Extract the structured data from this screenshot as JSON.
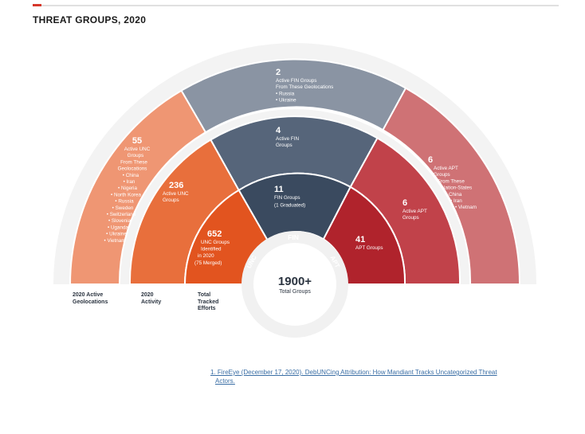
{
  "title": "THREAT GROUPS, 2020",
  "center": {
    "value": "1900+",
    "label": "Total Groups"
  },
  "inner_ring": {
    "unc": "UNC",
    "fin": "FIN",
    "apt": "APT"
  },
  "total_tracked": {
    "unc": {
      "number": "652",
      "lines": [
        "UNC Groups",
        "Identified",
        "in 2020",
        "(75 Merged)"
      ]
    },
    "fin": {
      "number": "11",
      "lines": [
        "FIN Groups",
        "(1 Graduated)"
      ]
    },
    "apt": {
      "number": "41",
      "lines": [
        "APT Groups"
      ]
    }
  },
  "activity": {
    "unc": {
      "number": "236",
      "lines": [
        "Active UNC",
        "Groups"
      ]
    },
    "fin": {
      "number": "4",
      "lines": [
        "Active FIN",
        "Groups"
      ]
    },
    "apt": {
      "number": "6",
      "lines": [
        "Active APT",
        "Groups"
      ]
    }
  },
  "geolocations": {
    "unc": {
      "number": "55",
      "lines": [
        "Active UNC",
        "Groups",
        "From These",
        "Geolocations",
        "• China",
        "• Iran",
        "• Nigeria",
        "• North Korea",
        "• Russia",
        "• Sweden",
        "• Switzerland",
        "• Slovenia",
        "• Uganda",
        "• Ukraine",
        "• Vietnam"
      ]
    },
    "fin": {
      "number": "2",
      "lines": [
        "Active FIN Groups",
        "From These Geolocations",
        "• Russia",
        "• Ukraine"
      ]
    },
    "apt": {
      "number": "6",
      "lines": [
        "Active APT",
        "Groups",
        "From These",
        "Nation-States",
        "• China",
        "• Iran",
        "• Vietnam"
      ]
    }
  },
  "column_labels": {
    "geolocations": [
      "2020 Active",
      "Geolocations"
    ],
    "activity": [
      "2020",
      "Activity"
    ],
    "total": [
      "Total",
      "Tracked",
      "Efforts"
    ]
  },
  "footnote": {
    "line1": "1. FireEye (December 17, 2020). DebUNCing Attribution: How Mandiant Tracks Uncategorized Threat",
    "line2": "Actors."
  },
  "colors": {
    "unc_outer": "#ef9673",
    "unc_mid": "#e86f3c",
    "unc_inner": "#e2541f",
    "fin_outer": "#8a94a3",
    "fin_mid": "#56657a",
    "fin_inner": "#3a4a5f",
    "apt_outer": "#cf7275",
    "apt_mid": "#c1424a",
    "apt_inner": "#b0232c",
    "ring_gray": "#f1f1f1",
    "label_dark": "#2b3440",
    "link": "#3a6ea5"
  }
}
